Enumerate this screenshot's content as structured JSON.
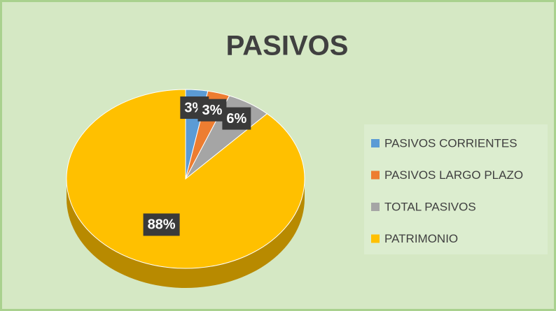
{
  "chart_data": {
    "type": "pie",
    "title": "PASIVOS",
    "categories": [
      "PASIVOS CORRIENTES",
      "PASIVOS LARGO PLAZO",
      "TOTAL PASIVOS",
      "PATRIMONIO"
    ],
    "values": [
      3,
      3,
      6,
      88
    ],
    "value_labels": [
      "3%",
      "3%",
      "6%",
      "88%"
    ],
    "colors": [
      "#5b9bd5",
      "#ed7d31",
      "#a5a5a5",
      "#ffc000"
    ],
    "legend": "right"
  }
}
